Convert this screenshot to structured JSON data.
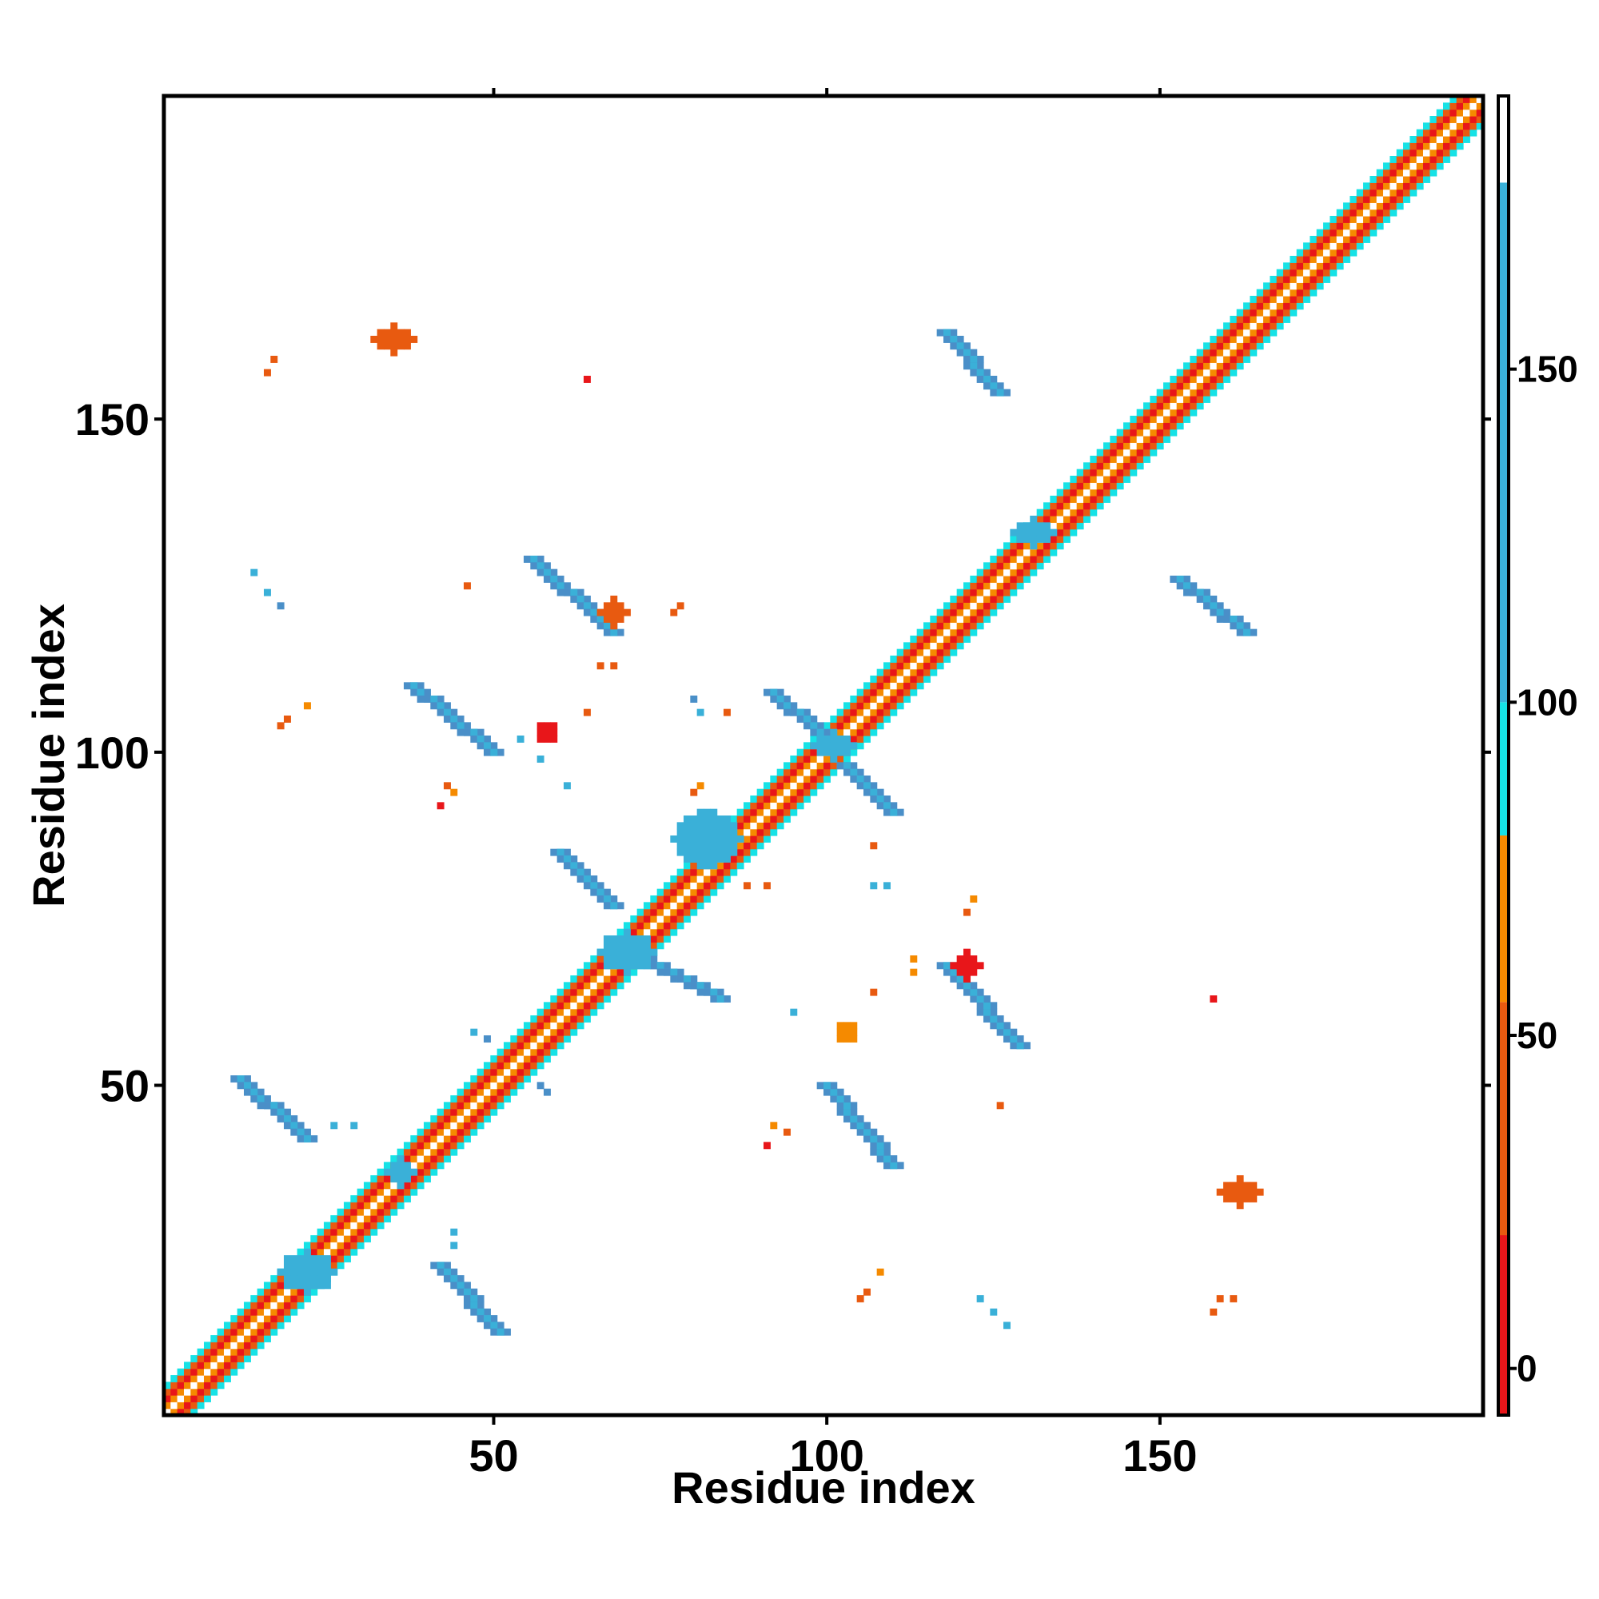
{
  "chart_data": {
    "type": "heatmap",
    "title": "",
    "xlabel": "Residue index",
    "ylabel": "Residue index",
    "xlim": [
      1,
      198
    ],
    "ylim": [
      1,
      198
    ],
    "x_ticks": [
      50,
      100,
      150
    ],
    "y_ticks": [
      50,
      100,
      150
    ],
    "grid": false,
    "colorbar": {
      "range": [
        -7,
        191
      ],
      "ticks": [
        0,
        50,
        100,
        150
      ],
      "tick_labels": [
        "0",
        "50",
        "100",
        "150"
      ],
      "bands": [
        {
          "from": -7,
          "to": 20,
          "color": "#e8161a"
        },
        {
          "from": 20,
          "to": 55,
          "color": "#e85a10"
        },
        {
          "from": 55,
          "to": 80,
          "color": "#f58a00"
        },
        {
          "from": 80,
          "to": 100,
          "color": "#16e2e6"
        },
        {
          "from": 100,
          "to": 178,
          "color": "#3ab0d8"
        },
        {
          "from": 178,
          "to": 191,
          "color": "#ffffff"
        }
      ]
    },
    "diagonal_band": {
      "x_range": [
        1,
        198
      ],
      "offsets": [
        {
          "offset": 0,
          "color": "#ffffff"
        },
        {
          "offset": 1,
          "color": "#f58a00"
        },
        {
          "offset": 2,
          "color": "#e8161a"
        },
        {
          "offset": 3,
          "color": "#e85a10"
        },
        {
          "offset": 4,
          "color": "#16e2e6"
        }
      ]
    },
    "contact_segments": [
      {
        "x1": 12,
        "y1": 51,
        "x2": 22,
        "y2": 42,
        "width": 3,
        "color": "#4a8fc8"
      },
      {
        "x1": 42,
        "y1": 23,
        "x2": 51,
        "y2": 13,
        "width": 3,
        "color": "#4a8fc8"
      },
      {
        "x1": 38,
        "y1": 110,
        "x2": 50,
        "y2": 100,
        "width": 3,
        "color": "#4a8fc8"
      },
      {
        "x1": 110,
        "y1": 38,
        "x2": 100,
        "y2": 50,
        "width": 3,
        "color": "#4a8fc8"
      },
      {
        "x1": 56,
        "y1": 129,
        "x2": 68,
        "y2": 118,
        "width": 3,
        "color": "#4a8fc8"
      },
      {
        "x1": 129,
        "y1": 56,
        "x2": 118,
        "y2": 68,
        "width": 3,
        "color": "#4a8fc8"
      },
      {
        "x1": 60,
        "y1": 85,
        "x2": 68,
        "y2": 77,
        "width": 3,
        "color": "#4a8fc8"
      },
      {
        "x1": 73,
        "y1": 69,
        "x2": 84,
        "y2": 63,
        "width": 3,
        "color": "#4a8fc8"
      },
      {
        "x1": 92,
        "y1": 109,
        "x2": 100,
        "y2": 102,
        "width": 3,
        "color": "#4a8fc8"
      },
      {
        "x1": 103,
        "y1": 98,
        "x2": 110,
        "y2": 91,
        "width": 3,
        "color": "#4a8fc8"
      },
      {
        "x1": 118,
        "y1": 163,
        "x2": 126,
        "y2": 154,
        "width": 3,
        "color": "#4a8fc8"
      },
      {
        "x1": 153,
        "y1": 126,
        "x2": 163,
        "y2": 118,
        "width": 3,
        "color": "#4a8fc8"
      }
    ],
    "contact_patches": [
      {
        "x": 35,
        "y": 162,
        "rx": 3,
        "ry": 2,
        "color": "#e85a10"
      },
      {
        "x": 162,
        "y": 34,
        "rx": 3,
        "ry": 2,
        "color": "#e85a10"
      },
      {
        "x": 22,
        "y": 22,
        "rx": 4,
        "ry": 3,
        "color": "#3ab0d8"
      },
      {
        "x": 36,
        "y": 37,
        "rx": 2,
        "ry": 2,
        "color": "#3ab0d8"
      },
      {
        "x": 70,
        "y": 70,
        "rx": 4,
        "ry": 3,
        "color": "#3ab0d8"
      },
      {
        "x": 82,
        "y": 87,
        "rx": 5,
        "ry": 4,
        "color": "#3ab0d8"
      },
      {
        "x": 101,
        "y": 101,
        "rx": 3,
        "ry": 2,
        "color": "#3ab0d8"
      },
      {
        "x": 131,
        "y": 133,
        "rx": 3,
        "ry": 2,
        "color": "#3ab0d8"
      },
      {
        "x": 68,
        "y": 121,
        "rx": 2,
        "ry": 2,
        "color": "#e85a10"
      },
      {
        "x": 121,
        "y": 68,
        "rx": 2,
        "ry": 2,
        "color": "#e8161a"
      },
      {
        "x": 58,
        "y": 103,
        "rx": 1.5,
        "ry": 1.5,
        "color": "#e8161a"
      },
      {
        "x": 103,
        "y": 58,
        "rx": 1.5,
        "ry": 1.5,
        "color": "#f58a00"
      }
    ],
    "scatter_cells": [
      {
        "x": 17,
        "y": 159,
        "color": "#e85a10"
      },
      {
        "x": 16,
        "y": 157,
        "color": "#e85a10"
      },
      {
        "x": 64,
        "y": 156,
        "color": "#e8161a"
      },
      {
        "x": 14,
        "y": 127,
        "color": "#3ab0d8"
      },
      {
        "x": 16,
        "y": 124,
        "color": "#3ab0d8"
      },
      {
        "x": 18,
        "y": 122,
        "color": "#4a8fc8"
      },
      {
        "x": 46,
        "y": 125,
        "color": "#e85a10"
      },
      {
        "x": 77,
        "y": 121,
        "color": "#e85a10"
      },
      {
        "x": 78,
        "y": 122,
        "color": "#e85a10"
      },
      {
        "x": 66,
        "y": 113,
        "color": "#e85a10"
      },
      {
        "x": 68,
        "y": 113,
        "color": "#e85a10"
      },
      {
        "x": 18,
        "y": 104,
        "color": "#e85a10"
      },
      {
        "x": 19,
        "y": 105,
        "color": "#e85a10"
      },
      {
        "x": 22,
        "y": 107,
        "color": "#f58a00"
      },
      {
        "x": 64,
        "y": 106,
        "color": "#e85a10"
      },
      {
        "x": 80,
        "y": 108,
        "color": "#4a8fc8"
      },
      {
        "x": 81,
        "y": 106,
        "color": "#3ab0d8"
      },
      {
        "x": 85,
        "y": 106,
        "color": "#e85a10"
      },
      {
        "x": 54,
        "y": 102,
        "color": "#3ab0d8"
      },
      {
        "x": 57,
        "y": 99,
        "color": "#3ab0d8"
      },
      {
        "x": 43,
        "y": 95,
        "color": "#e85a10"
      },
      {
        "x": 44,
        "y": 94,
        "color": "#f58a00"
      },
      {
        "x": 42,
        "y": 92,
        "color": "#e8161a"
      },
      {
        "x": 61,
        "y": 95,
        "color": "#3ab0d8"
      },
      {
        "x": 80,
        "y": 94,
        "color": "#e85a10"
      },
      {
        "x": 81,
        "y": 95,
        "color": "#f58a00"
      },
      {
        "x": 107,
        "y": 86,
        "color": "#e85a10"
      },
      {
        "x": 88,
        "y": 80,
        "color": "#e85a10"
      },
      {
        "x": 91,
        "y": 80,
        "color": "#e85a10"
      },
      {
        "x": 107,
        "y": 80,
        "color": "#3ab0d8"
      },
      {
        "x": 109,
        "y": 80,
        "color": "#3ab0d8"
      },
      {
        "x": 122,
        "y": 78,
        "color": "#f58a00"
      },
      {
        "x": 121,
        "y": 76,
        "color": "#e85a10"
      },
      {
        "x": 113,
        "y": 69,
        "color": "#f58a00"
      },
      {
        "x": 113,
        "y": 67,
        "color": "#f58a00"
      },
      {
        "x": 107,
        "y": 64,
        "color": "#e85a10"
      },
      {
        "x": 95,
        "y": 61,
        "color": "#3ab0d8"
      },
      {
        "x": 158,
        "y": 63,
        "color": "#e8161a"
      },
      {
        "x": 47,
        "y": 58,
        "color": "#3ab0d8"
      },
      {
        "x": 49,
        "y": 57,
        "color": "#4a8fc8"
      },
      {
        "x": 57,
        "y": 50,
        "color": "#4a8fc8"
      },
      {
        "x": 58,
        "y": 49,
        "color": "#4a8fc8"
      },
      {
        "x": 26,
        "y": 44,
        "color": "#3ab0d8"
      },
      {
        "x": 29,
        "y": 44,
        "color": "#3ab0d8"
      },
      {
        "x": 92,
        "y": 44,
        "color": "#f58a00"
      },
      {
        "x": 94,
        "y": 43,
        "color": "#e85a10"
      },
      {
        "x": 91,
        "y": 41,
        "color": "#e8161a"
      },
      {
        "x": 126,
        "y": 47,
        "color": "#e85a10"
      },
      {
        "x": 44,
        "y": 28,
        "color": "#3ab0d8"
      },
      {
        "x": 44,
        "y": 26,
        "color": "#3ab0d8"
      },
      {
        "x": 108,
        "y": 22,
        "color": "#f58a00"
      },
      {
        "x": 106,
        "y": 19,
        "color": "#e85a10"
      },
      {
        "x": 105,
        "y": 18,
        "color": "#e85a10"
      },
      {
        "x": 123,
        "y": 18,
        "color": "#3ab0d8"
      },
      {
        "x": 125,
        "y": 16,
        "color": "#3ab0d8"
      },
      {
        "x": 127,
        "y": 14,
        "color": "#3ab0d8"
      },
      {
        "x": 159,
        "y": 18,
        "color": "#e85a10"
      },
      {
        "x": 161,
        "y": 18,
        "color": "#e85a10"
      },
      {
        "x": 158,
        "y": 16,
        "color": "#e85a10"
      }
    ]
  }
}
